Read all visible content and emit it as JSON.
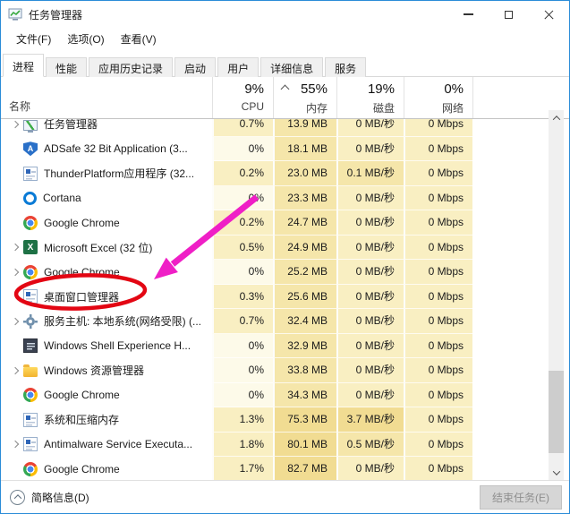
{
  "window": {
    "title": "任务管理器"
  },
  "menu": {
    "items": [
      "文件(F)",
      "选项(O)",
      "查看(V)"
    ]
  },
  "tabs": {
    "items": [
      "进程",
      "性能",
      "应用历史记录",
      "启动",
      "用户",
      "详细信息",
      "服务"
    ],
    "active": "进程"
  },
  "columns": {
    "name_label": "名称",
    "cpu": {
      "percent": "9%",
      "label": "CPU"
    },
    "memory": {
      "percent": "55%",
      "label": "内存",
      "sorted": true
    },
    "disk": {
      "percent": "19%",
      "label": "磁盘"
    },
    "network": {
      "percent": "0%",
      "label": "网络"
    }
  },
  "processes": [
    {
      "name": "任务管理器",
      "icon": "taskmgr",
      "expandable": true,
      "cpu": "0.7%",
      "memory": "13.9 MB",
      "disk": "0 MB/秒",
      "network": "0 Mbps"
    },
    {
      "name": "ADSafe 32 Bit Application (3...",
      "icon": "shield",
      "expandable": false,
      "cpu": "0%",
      "memory": "18.1 MB",
      "disk": "0 MB/秒",
      "network": "0 Mbps"
    },
    {
      "name": "ThunderPlatform应用程序 (32...",
      "icon": "window",
      "expandable": false,
      "cpu": "0.2%",
      "memory": "23.0 MB",
      "disk": "0.1 MB/秒",
      "network": "0 Mbps"
    },
    {
      "name": "Cortana",
      "icon": "cortana",
      "expandable": false,
      "cpu": "0%",
      "memory": "23.3 MB",
      "disk": "0 MB/秒",
      "network": "0 Mbps"
    },
    {
      "name": "Google Chrome",
      "icon": "chrome",
      "expandable": false,
      "cpu": "0.2%",
      "memory": "24.7 MB",
      "disk": "0 MB/秒",
      "network": "0 Mbps"
    },
    {
      "name": "Microsoft Excel (32 位)",
      "icon": "excel",
      "expandable": true,
      "cpu": "0.5%",
      "memory": "24.9 MB",
      "disk": "0 MB/秒",
      "network": "0 Mbps"
    },
    {
      "name": "Google Chrome",
      "icon": "chrome",
      "expandable": true,
      "cpu": "0%",
      "memory": "25.2 MB",
      "disk": "0 MB/秒",
      "network": "0 Mbps"
    },
    {
      "name": "桌面窗口管理器",
      "icon": "window",
      "expandable": false,
      "cpu": "0.3%",
      "memory": "25.6 MB",
      "disk": "0 MB/秒",
      "network": "0 Mbps"
    },
    {
      "name": "服务主机: 本地系统(网络受限) (...",
      "icon": "gear",
      "expandable": true,
      "cpu": "0.7%",
      "memory": "32.4 MB",
      "disk": "0 MB/秒",
      "network": "0 Mbps"
    },
    {
      "name": "Windows Shell Experience H...",
      "icon": "window-dark",
      "expandable": false,
      "cpu": "0%",
      "memory": "32.9 MB",
      "disk": "0 MB/秒",
      "network": "0 Mbps"
    },
    {
      "name": "Windows 资源管理器",
      "icon": "folder",
      "expandable": true,
      "cpu": "0%",
      "memory": "33.8 MB",
      "disk": "0 MB/秒",
      "network": "0 Mbps"
    },
    {
      "name": "Google Chrome",
      "icon": "chrome",
      "expandable": false,
      "cpu": "0%",
      "memory": "34.3 MB",
      "disk": "0 MB/秒",
      "network": "0 Mbps"
    },
    {
      "name": "系统和压缩内存",
      "icon": "window",
      "expandable": false,
      "cpu": "1.3%",
      "memory": "75.3 MB",
      "disk": "3.7 MB/秒",
      "network": "0 Mbps"
    },
    {
      "name": "Antimalware Service Executa...",
      "icon": "window",
      "expandable": true,
      "cpu": "1.8%",
      "memory": "80.1 MB",
      "disk": "0.5 MB/秒",
      "network": "0 Mbps"
    },
    {
      "name": "Google Chrome",
      "icon": "chrome",
      "expandable": false,
      "cpu": "1.7%",
      "memory": "82.7 MB",
      "disk": "0 MB/秒",
      "network": "0 Mbps"
    }
  ],
  "footer": {
    "details_toggle": "简略信息(D)",
    "end_task_button": "结束任务(E)"
  },
  "annotations": {
    "highlighted_process": "桌面窗口管理器",
    "ellipse_color": "#e30613",
    "arrow_color": "#ef1fc6"
  },
  "colors": {
    "window_border": "#2b8cd8",
    "heat_none": "#fdfae9",
    "heat_low": "#f9efc2",
    "heat_mid": "#f5e6aa",
    "heat_high": "#f1dc92"
  }
}
